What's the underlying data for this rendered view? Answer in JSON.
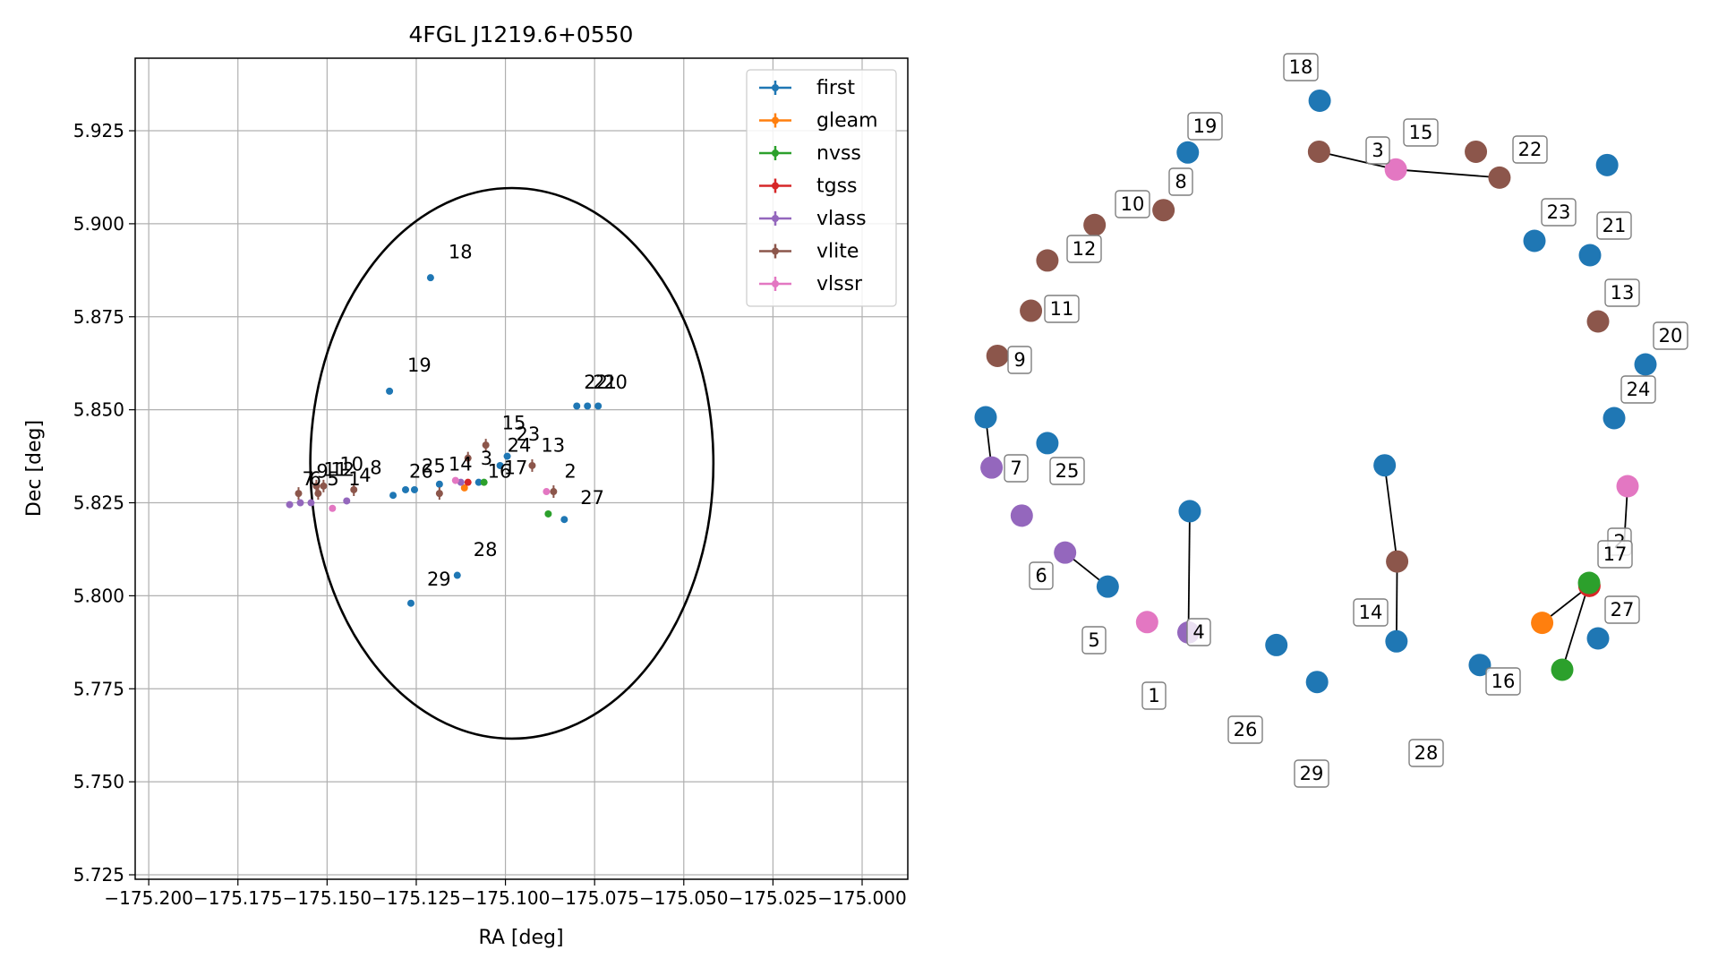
{
  "colors": {
    "first": "#1f77b4",
    "gleam": "#ff7f0e",
    "nvss": "#2ca02c",
    "tgss": "#d62728",
    "vlass": "#9467bd",
    "vlite": "#8c564b",
    "vlssr": "#e377c2",
    "link": "#000000",
    "grid": "#b0b0b0"
  },
  "chart_data": [
    {
      "type": "scatter",
      "title": "4FGL J1219.6+0550",
      "xlabel": "RA [deg]",
      "ylabel": "Dec [deg]",
      "xlim": [
        -175.2038,
        -174.9872
      ],
      "ylim": [
        5.7238,
        5.9445
      ],
      "xticks": [
        -175.2,
        -175.175,
        -175.15,
        -175.125,
        -175.1,
        -175.075,
        -175.05,
        -175.025,
        -175.0
      ],
      "xtick_labels": [
        "−175.200",
        "−175.175",
        "−175.150",
        "−175.125",
        "−175.100",
        "−175.075",
        "−175.050",
        "−175.025",
        "−175.000"
      ],
      "yticks": [
        5.725,
        5.75,
        5.775,
        5.8,
        5.825,
        5.85,
        5.875,
        5.9,
        5.925
      ],
      "ytick_labels": [
        "5.725",
        "5.750",
        "5.775",
        "5.800",
        "5.825",
        "5.850",
        "5.875",
        "5.900",
        "5.925"
      ],
      "grid": true,
      "legend_position": "top-right",
      "ellipse": {
        "center": [
          -175.0982,
          5.8356
        ],
        "semi_axis_ra": 0.0565,
        "semi_axis_dec": 0.074
      },
      "legend": [
        "first",
        "gleam",
        "nvss",
        "tgss",
        "vlass",
        "vlite",
        "vlssr"
      ],
      "points": [
        {
          "survey": "first",
          "ra": -175.121,
          "dec": 5.8855
        },
        {
          "survey": "first",
          "ra": -175.1325,
          "dec": 5.855
        },
        {
          "survey": "first",
          "ra": -175.08,
          "dec": 5.851
        },
        {
          "survey": "first",
          "ra": -175.077,
          "dec": 5.851
        },
        {
          "survey": "first",
          "ra": -175.074,
          "dec": 5.851
        },
        {
          "survey": "first",
          "ra": -175.0995,
          "dec": 5.8375
        },
        {
          "survey": "first",
          "ra": -175.1015,
          "dec": 5.835
        },
        {
          "survey": "first",
          "ra": -175.1185,
          "dec": 5.83
        },
        {
          "survey": "first",
          "ra": -175.1255,
          "dec": 5.8285
        },
        {
          "survey": "first",
          "ra": -175.128,
          "dec": 5.8285
        },
        {
          "survey": "first",
          "ra": -175.1315,
          "dec": 5.827
        },
        {
          "survey": "first",
          "ra": -175.0835,
          "dec": 5.8205
        },
        {
          "survey": "first",
          "ra": -175.1075,
          "dec": 5.8305
        },
        {
          "survey": "first",
          "ra": -175.1135,
          "dec": 5.8055
        },
        {
          "survey": "first",
          "ra": -175.1265,
          "dec": 5.798
        },
        {
          "survey": "gleam",
          "ra": -175.1115,
          "dec": 5.829
        },
        {
          "survey": "nvss",
          "ra": -175.106,
          "dec": 5.8305
        },
        {
          "survey": "nvss",
          "ra": -175.088,
          "dec": 5.822
        },
        {
          "survey": "tgss",
          "ra": -175.1105,
          "dec": 5.8305
        },
        {
          "survey": "vlass",
          "ra": -175.1605,
          "dec": 5.8245
        },
        {
          "survey": "vlass",
          "ra": -175.1575,
          "dec": 5.825
        },
        {
          "survey": "vlass",
          "ra": -175.1545,
          "dec": 5.825
        },
        {
          "survey": "vlass",
          "ra": -175.1445,
          "dec": 5.8255
        },
        {
          "survey": "vlass",
          "ra": -175.1125,
          "dec": 5.8305
        },
        {
          "survey": "vlite",
          "ra": -175.158,
          "dec": 5.8275
        },
        {
          "survey": "vlite",
          "ra": -175.153,
          "dec": 5.8295
        },
        {
          "survey": "vlite",
          "ra": -175.151,
          "dec": 5.8295
        },
        {
          "survey": "vlite",
          "ra": -175.1525,
          "dec": 5.8275
        },
        {
          "survey": "vlite",
          "ra": -175.1425,
          "dec": 5.8285
        },
        {
          "survey": "vlite",
          "ra": -175.1185,
          "dec": 5.8275
        },
        {
          "survey": "vlite",
          "ra": -175.1105,
          "dec": 5.837
        },
        {
          "survey": "vlite",
          "ra": -175.1055,
          "dec": 5.8405
        },
        {
          "survey": "vlite",
          "ra": -175.0925,
          "dec": 5.835
        },
        {
          "survey": "vlite",
          "ra": -175.0865,
          "dec": 5.828
        },
        {
          "survey": "vlssr",
          "ra": -175.0885,
          "dec": 5.828
        },
        {
          "survey": "vlssr",
          "ra": -175.1485,
          "dec": 5.8235
        },
        {
          "survey": "vlssr",
          "ra": -175.114,
          "dec": 5.831
        }
      ],
      "labels": [
        {
          "text": "18",
          "ra": -175.1175,
          "dec": 5.8895
        },
        {
          "text": "19",
          "ra": -175.129,
          "dec": 5.859
        },
        {
          "text": "22",
          "ra": -175.0795,
          "dec": 5.8545
        },
        {
          "text": "21",
          "ra": -175.077,
          "dec": 5.8545
        },
        {
          "text": "20",
          "ra": -175.074,
          "dec": 5.8545
        },
        {
          "text": "15",
          "ra": -175.1025,
          "dec": 5.8435
        },
        {
          "text": "23",
          "ra": -175.0985,
          "dec": 5.8405
        },
        {
          "text": "24",
          "ra": -175.101,
          "dec": 5.8375
        },
        {
          "text": "13",
          "ra": -175.0915,
          "dec": 5.8375
        },
        {
          "text": "3",
          "ra": -175.1085,
          "dec": 5.834
        },
        {
          "text": "17",
          "ra": -175.102,
          "dec": 5.8315
        },
        {
          "text": "16",
          "ra": -175.1065,
          "dec": 5.8305
        },
        {
          "text": "2",
          "ra": -175.085,
          "dec": 5.8305
        },
        {
          "text": "27",
          "ra": -175.0805,
          "dec": 5.8235
        },
        {
          "text": "14",
          "ra": -175.1175,
          "dec": 5.8325
        },
        {
          "text": "25",
          "ra": -175.125,
          "dec": 5.832
        },
        {
          "text": "26",
          "ra": -175.1285,
          "dec": 5.8305
        },
        {
          "text": "8",
          "ra": -175.1395,
          "dec": 5.8315
        },
        {
          "text": "4",
          "ra": -175.1425,
          "dec": 5.8295
        },
        {
          "text": "10",
          "ra": -175.148,
          "dec": 5.8325
        },
        {
          "text": "12",
          "ra": -175.1505,
          "dec": 5.831
        },
        {
          "text": "11",
          "ra": -175.1525,
          "dec": 5.831
        },
        {
          "text": "9",
          "ra": -175.1545,
          "dec": 5.8305
        },
        {
          "text": "7",
          "ra": -175.1585,
          "dec": 5.8285
        },
        {
          "text": "6",
          "ra": -175.1565,
          "dec": 5.8285
        },
        {
          "text": "5",
          "ra": -175.1515,
          "dec": 5.8285
        },
        {
          "text": "1",
          "ra": -175.1455,
          "dec": 5.8285
        },
        {
          "text": "28",
          "ra": -175.1105,
          "dec": 5.8095
        },
        {
          "text": "29",
          "ra": -175.1235,
          "dec": 5.8015
        }
      ]
    },
    {
      "type": "graph",
      "nodes": [
        {
          "id": "18",
          "survey": "first",
          "x": 0.509,
          "y": 0.049
        },
        {
          "id": "19",
          "survey": "first",
          "x": 0.308,
          "y": 0.119
        },
        {
          "id": "8",
          "survey": "vlite",
          "x": 0.271,
          "y": 0.197
        },
        {
          "id": "10",
          "survey": "vlite",
          "x": 0.166,
          "y": 0.217
        },
        {
          "id": "12",
          "survey": "vlite",
          "x": 0.094,
          "y": 0.265
        },
        {
          "id": "11",
          "survey": "vlite",
          "x": 0.069,
          "y": 0.333
        },
        {
          "id": "9",
          "survey": "vlite",
          "x": 0.018,
          "y": 0.394
        },
        {
          "id": "7",
          "survey": "first",
          "x": 0.0,
          "y": 0.477
        },
        {
          "id": "v7",
          "survey": "vlass",
          "x": 0.009,
          "y": 0.545
        },
        {
          "id": "25",
          "survey": "first",
          "x": 0.094,
          "y": 0.512
        },
        {
          "id": "6",
          "survey": "vlass",
          "x": 0.055,
          "y": 0.61
        },
        {
          "id": "5",
          "survey": "vlass",
          "x": 0.121,
          "y": 0.66
        },
        {
          "id": "f5",
          "survey": "first",
          "x": 0.186,
          "y": 0.706
        },
        {
          "id": "1",
          "survey": "vlssr",
          "x": 0.246,
          "y": 0.754
        },
        {
          "id": "f4",
          "survey": "first",
          "x": 0.311,
          "y": 0.604
        },
        {
          "id": "4",
          "survey": "vlass",
          "x": 0.309,
          "y": 0.768
        },
        {
          "id": "26",
          "survey": "first",
          "x": 0.443,
          "y": 0.785
        },
        {
          "id": "29",
          "survey": "first",
          "x": 0.505,
          "y": 0.835
        },
        {
          "id": "f14a",
          "survey": "first",
          "x": 0.608,
          "y": 0.542
        },
        {
          "id": "14",
          "survey": "vlite",
          "x": 0.627,
          "y": 0.672
        },
        {
          "id": "f14b",
          "survey": "first",
          "x": 0.626,
          "y": 0.78
        },
        {
          "id": "28",
          "survey": "first",
          "x": 0.753,
          "y": 0.812
        },
        {
          "id": "g16",
          "survey": "gleam",
          "x": 0.848,
          "y": 0.755
        },
        {
          "id": "16",
          "survey": "tgss",
          "x": 0.92,
          "y": 0.705
        },
        {
          "id": "v15a",
          "survey": "vlite",
          "x": 0.508,
          "y": 0.118
        },
        {
          "id": "3",
          "survey": "vlssr",
          "x": 0.625,
          "y": 0.142
        },
        {
          "id": "15",
          "survey": "vlite",
          "x": 0.747,
          "y": 0.118
        },
        {
          "id": "v15b",
          "survey": "vlite",
          "x": 0.783,
          "y": 0.153
        },
        {
          "id": "22",
          "survey": "first",
          "x": 0.947,
          "y": 0.136
        }
      ]
    }
  ]
}
